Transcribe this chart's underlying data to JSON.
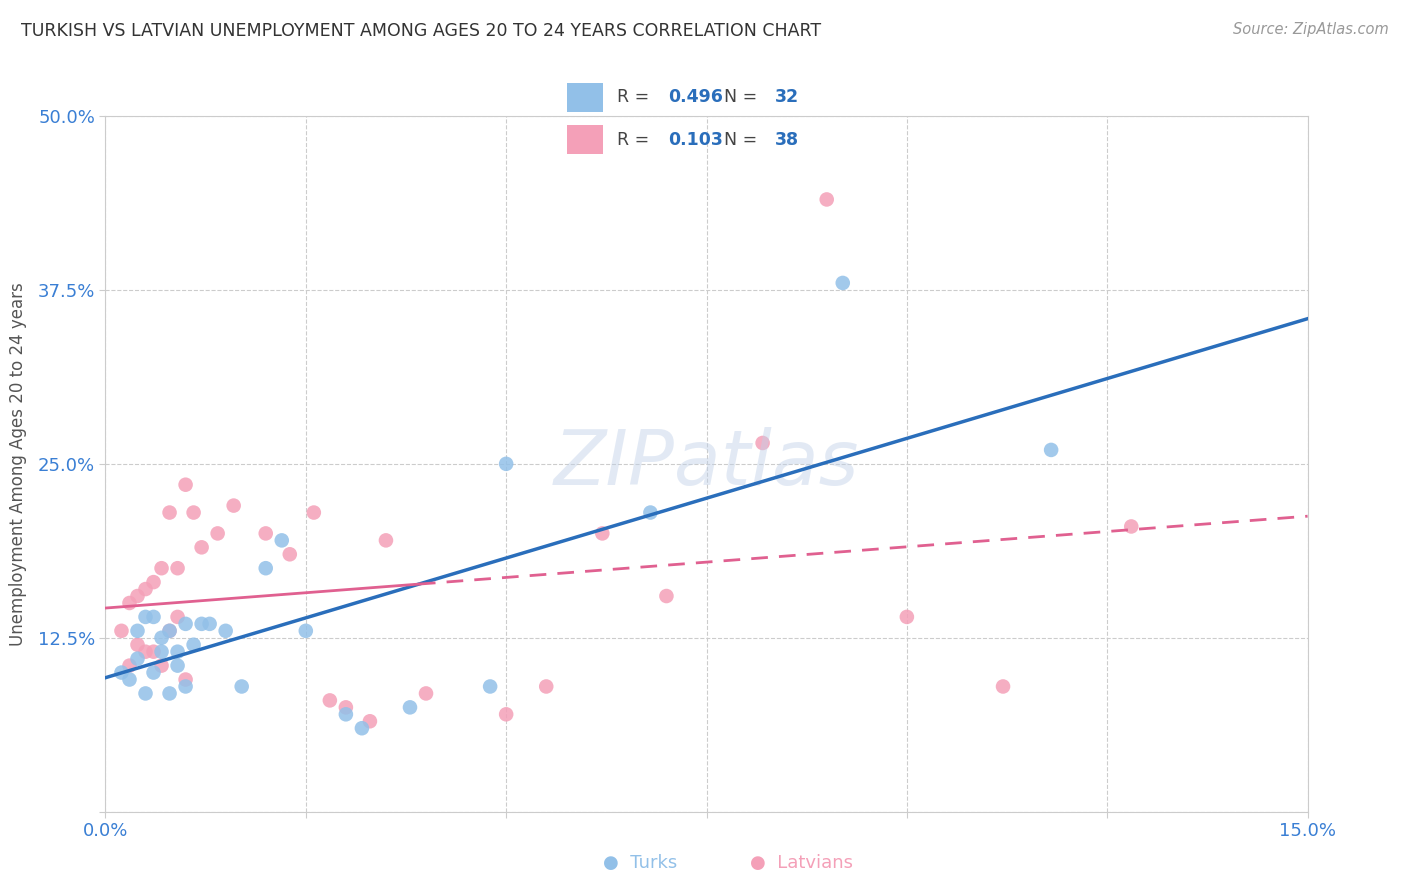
{
  "title": "TURKISH VS LATVIAN UNEMPLOYMENT AMONG AGES 20 TO 24 YEARS CORRELATION CHART",
  "source": "Source: ZipAtlas.com",
  "ylabel": "Unemployment Among Ages 20 to 24 years",
  "xlim": [
    0.0,
    0.15
  ],
  "ylim": [
    0.0,
    0.5
  ],
  "xticks": [
    0.0,
    0.025,
    0.05,
    0.075,
    0.1,
    0.125,
    0.15
  ],
  "xticklabels": [
    "0.0%",
    "",
    "",
    "",
    "",
    "",
    "15.0%"
  ],
  "yticks": [
    0.0,
    0.125,
    0.25,
    0.375,
    0.5
  ],
  "yticklabels": [
    "",
    "12.5%",
    "25.0%",
    "37.5%",
    "50.0%"
  ],
  "turks_R": "0.496",
  "turks_N": "32",
  "latvians_R": "0.103",
  "latvians_N": "38",
  "turks_color": "#92c0e8",
  "latvians_color": "#f4a0b8",
  "turks_line_color": "#2a6ebb",
  "latvians_line_color": "#e06090",
  "grid_color": "#cccccc",
  "turks_x": [
    0.002,
    0.003,
    0.004,
    0.004,
    0.005,
    0.005,
    0.006,
    0.006,
    0.007,
    0.007,
    0.008,
    0.008,
    0.009,
    0.009,
    0.01,
    0.01,
    0.011,
    0.012,
    0.013,
    0.015,
    0.017,
    0.02,
    0.022,
    0.025,
    0.03,
    0.032,
    0.038,
    0.048,
    0.05,
    0.068,
    0.092,
    0.118
  ],
  "turks_y": [
    0.1,
    0.095,
    0.11,
    0.13,
    0.085,
    0.14,
    0.1,
    0.14,
    0.115,
    0.125,
    0.085,
    0.13,
    0.105,
    0.115,
    0.09,
    0.135,
    0.12,
    0.135,
    0.135,
    0.13,
    0.09,
    0.175,
    0.195,
    0.13,
    0.07,
    0.06,
    0.075,
    0.09,
    0.25,
    0.215,
    0.38,
    0.26
  ],
  "latvians_x": [
    0.002,
    0.003,
    0.003,
    0.004,
    0.004,
    0.005,
    0.005,
    0.006,
    0.006,
    0.007,
    0.007,
    0.008,
    0.008,
    0.009,
    0.009,
    0.01,
    0.01,
    0.011,
    0.012,
    0.014,
    0.016,
    0.02,
    0.023,
    0.026,
    0.028,
    0.03,
    0.033,
    0.035,
    0.04,
    0.05,
    0.055,
    0.062,
    0.07,
    0.082,
    0.09,
    0.1,
    0.112,
    0.128
  ],
  "latvians_y": [
    0.13,
    0.105,
    0.15,
    0.12,
    0.155,
    0.115,
    0.16,
    0.115,
    0.165,
    0.105,
    0.175,
    0.13,
    0.215,
    0.175,
    0.14,
    0.095,
    0.235,
    0.215,
    0.19,
    0.2,
    0.22,
    0.2,
    0.185,
    0.215,
    0.08,
    0.075,
    0.065,
    0.195,
    0.085,
    0.07,
    0.09,
    0.2,
    0.155,
    0.265,
    0.44,
    0.14,
    0.09,
    0.205
  ],
  "watermark": "ZIPatlas",
  "background_color": "#ffffff",
  "tick_color": "#3a7fd4",
  "title_color": "#333333",
  "source_color": "#999999",
  "ylabel_color": "#555555"
}
